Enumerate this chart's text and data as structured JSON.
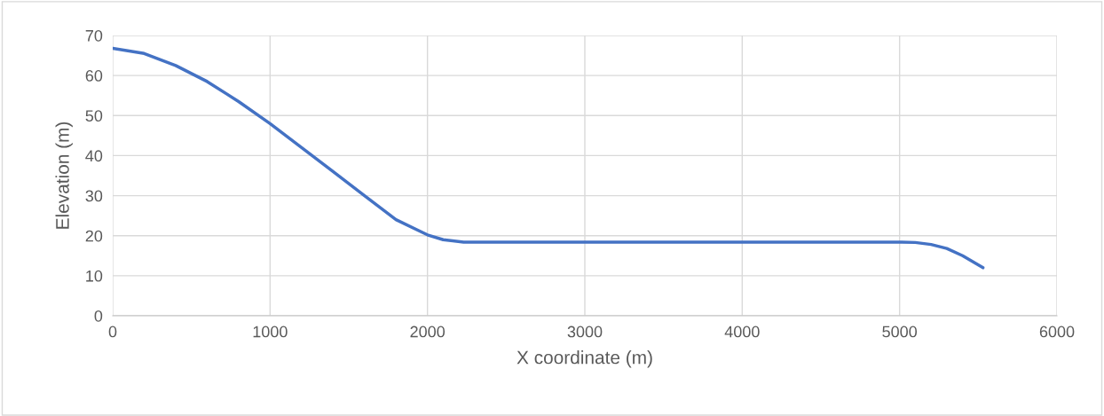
{
  "chart_data": {
    "type": "line",
    "xlabel": "X coordinate (m)",
    "ylabel": "Elevation (m)",
    "series": [
      {
        "color": "#4472c4",
        "x": [
          0,
          200,
          400,
          600,
          800,
          1000,
          1200,
          1400,
          1600,
          1800,
          2000,
          2100,
          2230,
          3000,
          4000,
          5000,
          5100,
          5200,
          5300,
          5400,
          5530
        ],
        "values": [
          66.8,
          65.5,
          62.5,
          58.5,
          53.5,
          48,
          42,
          36,
          30,
          24,
          20.2,
          19,
          18.4,
          18.4,
          18.4,
          18.4,
          18.3,
          17.8,
          16.8,
          15,
          12
        ]
      }
    ],
    "xlim": [
      0,
      6000
    ],
    "xticks": [
      0,
      1000,
      2000,
      3000,
      4000,
      5000,
      6000
    ],
    "ylim": [
      0,
      70
    ],
    "yticks": [
      0,
      10,
      20,
      30,
      40,
      50,
      60,
      70
    ],
    "grid": true
  }
}
